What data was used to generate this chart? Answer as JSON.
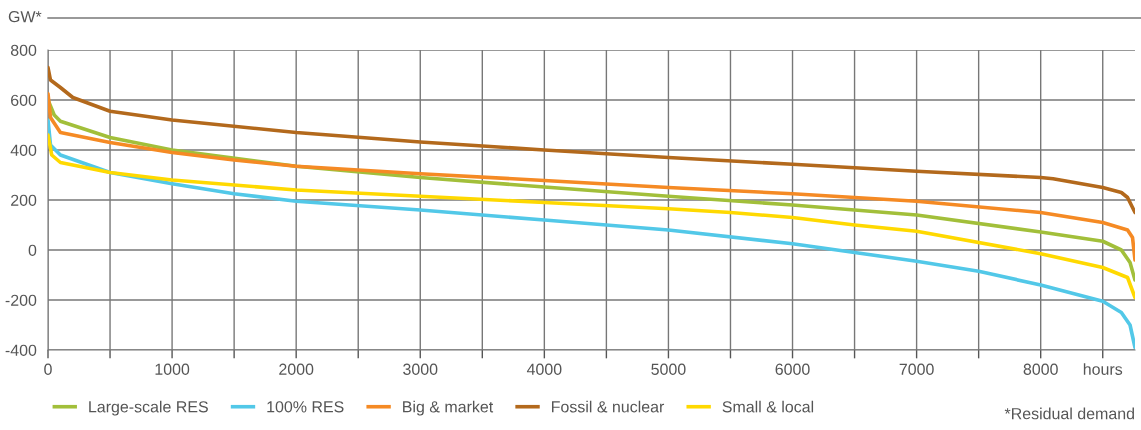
{
  "chart_data": {
    "type": "line",
    "ylabel": "GW*",
    "annotations": [
      "*Residual demand"
    ],
    "xlim": [
      0,
      8760
    ],
    "ylim": [
      -400,
      800
    ],
    "xticks": [
      0,
      {
        "value": 500,
        "label": null
      },
      1000,
      {
        "value": 1500,
        "label": null
      },
      2000,
      {
        "value": 2500,
        "label": null
      },
      3000,
      {
        "value": 3500,
        "label": null
      },
      4000,
      {
        "value": 4500,
        "label": null
      },
      5000,
      {
        "value": 5500,
        "label": null
      },
      6000,
      {
        "value": 6500,
        "label": null
      },
      7000,
      {
        "value": 7500,
        "label": null
      },
      8000,
      {
        "value": 8500,
        "label": "hours"
      }
    ],
    "yticks": [
      -400,
      -200,
      0,
      200,
      400,
      600,
      800
    ],
    "grid": true,
    "legend": "bottom",
    "marker": "none",
    "line_style": "solid",
    "series": [
      {
        "name": "Large-scale RES",
        "color": "#a2bf3a",
        "x": [
          0,
          50,
          100,
          500,
          1000,
          2000,
          3000,
          4000,
          5000,
          6000,
          7000,
          8000,
          8500,
          8650,
          8720,
          8760
        ],
        "values": [
          600,
          540,
          515,
          450,
          400,
          335,
          290,
          252,
          215,
          180,
          140,
          72,
          35,
          0,
          -50,
          -120
        ]
      },
      {
        "name": "100% RES",
        "color": "#52c8e8",
        "x": [
          0,
          20,
          100,
          500,
          1000,
          1500,
          2000,
          3000,
          4000,
          5000,
          6000,
          6500,
          7000,
          7500,
          8000,
          8500,
          8650,
          8720,
          8760
        ],
        "values": [
          520,
          420,
          380,
          310,
          265,
          225,
          195,
          160,
          120,
          80,
          25,
          -10,
          -45,
          -85,
          -140,
          -205,
          -250,
          -300,
          -390
        ]
      },
      {
        "name": "Big & market",
        "color": "#f58a24",
        "x": [
          0,
          20,
          100,
          500,
          1000,
          1500,
          2000,
          3000,
          4000,
          5000,
          6000,
          7000,
          8000,
          8500,
          8700,
          8740,
          8760
        ],
        "values": [
          625,
          530,
          470,
          430,
          390,
          360,
          335,
          305,
          278,
          250,
          225,
          195,
          150,
          110,
          80,
          50,
          -40
        ]
      },
      {
        "name": "Fossil & nuclear",
        "color": "#b3691c",
        "x": [
          0,
          20,
          100,
          200,
          500,
          1000,
          2000,
          3000,
          4000,
          5000,
          6000,
          7000,
          8000,
          8100,
          8500,
          8650,
          8700,
          8760
        ],
        "values": [
          730,
          680,
          650,
          610,
          555,
          520,
          470,
          432,
          400,
          370,
          343,
          315,
          290,
          285,
          250,
          230,
          210,
          150
        ]
      },
      {
        "name": "Small & local",
        "color": "#ffd900",
        "x": [
          0,
          30,
          100,
          500,
          1000,
          2000,
          3000,
          4000,
          5000,
          5500,
          6000,
          6500,
          7000,
          8000,
          8500,
          8700,
          8760
        ],
        "values": [
          460,
          380,
          350,
          310,
          280,
          240,
          215,
          190,
          165,
          150,
          130,
          100,
          75,
          -15,
          -70,
          -110,
          -190
        ]
      }
    ]
  }
}
